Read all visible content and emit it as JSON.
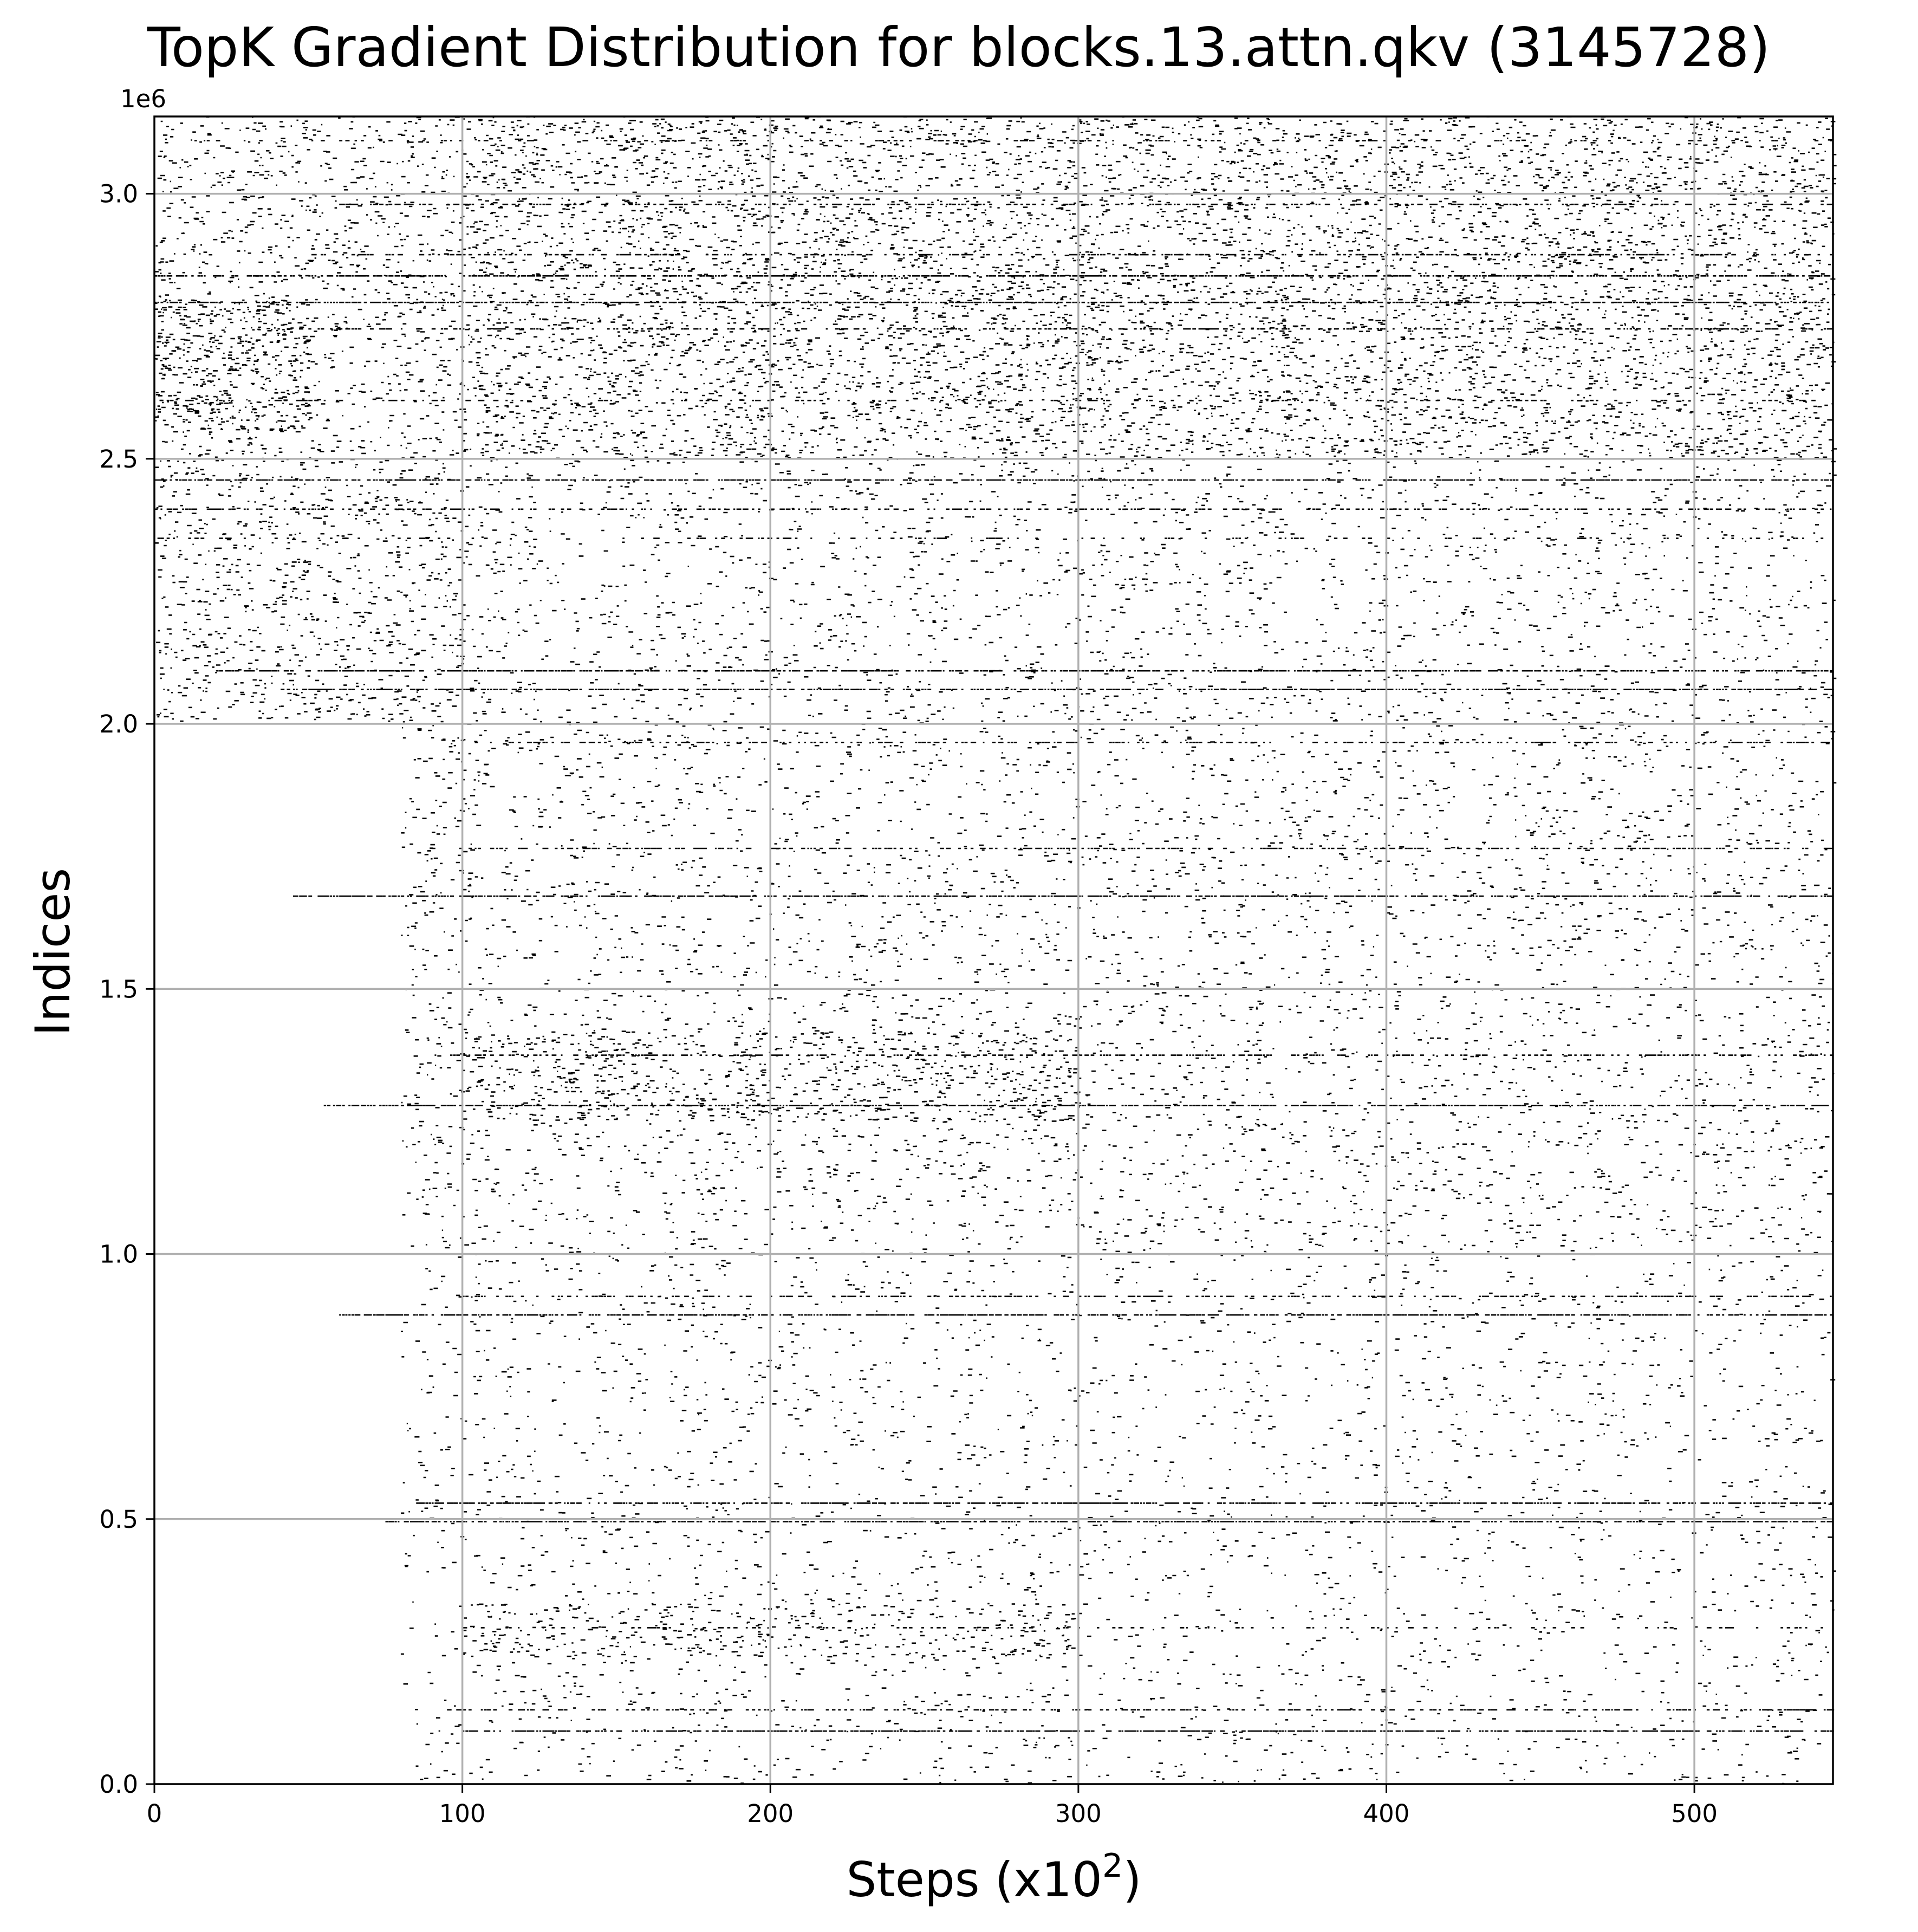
{
  "chart_data": {
    "type": "scatter",
    "title": "TopK Gradient Distribution for blocks.13.attn.qkv (3145728)",
    "xlabel": "Steps (x10",
    "xlabel_superscript": "2",
    "xlabel_suffix": ")",
    "ylabel": "Indices",
    "y_offset_label": "1e6",
    "xlim": [
      0,
      545
    ],
    "ylim": [
      0,
      3145728
    ],
    "y_scale_factor": 1000000,
    "grid": true,
    "marker_color": "#000000",
    "grid_color": "#b0b0b0",
    "x_ticks": [
      {
        "value": 0,
        "label": "0"
      },
      {
        "value": 100,
        "label": "100"
      },
      {
        "value": 200,
        "label": "200"
      },
      {
        "value": 300,
        "label": "300"
      },
      {
        "value": 400,
        "label": "400"
      },
      {
        "value": 500,
        "label": "500"
      }
    ],
    "y_ticks": [
      {
        "value": 0,
        "label": "0.0"
      },
      {
        "value": 500000,
        "label": "0.5"
      },
      {
        "value": 1000000,
        "label": "1.0"
      },
      {
        "value": 1500000,
        "label": "1.5"
      },
      {
        "value": 2000000,
        "label": "2.0"
      },
      {
        "value": 2500000,
        "label": "2.5"
      },
      {
        "value": 3000000,
        "label": "3.0"
      }
    ],
    "persistent_index_bands": [
      {
        "index": 3100000,
        "x_range": [
          0,
          545
        ],
        "density": "low"
      },
      {
        "index": 2980000,
        "x_range": [
          60,
          545
        ],
        "density": "medium"
      },
      {
        "index": 2885000,
        "x_range": [
          50,
          545
        ],
        "density": "medium"
      },
      {
        "index": 2845000,
        "x_range": [
          0,
          545
        ],
        "density": "high"
      },
      {
        "index": 2795000,
        "x_range": [
          0,
          545
        ],
        "density": "high"
      },
      {
        "index": 2745000,
        "x_range": [
          40,
          545
        ],
        "density": "medium"
      },
      {
        "index": 2610000,
        "x_range": [
          0,
          545
        ],
        "density": "low"
      },
      {
        "index": 2500000,
        "x_range": [
          0,
          545
        ],
        "density": "high"
      },
      {
        "index": 2460000,
        "x_range": [
          0,
          545
        ],
        "density": "high"
      },
      {
        "index": 2405000,
        "x_range": [
          0,
          545
        ],
        "density": "medium"
      },
      {
        "index": 2350000,
        "x_range": [
          0,
          545
        ],
        "density": "low"
      },
      {
        "index": 2100000,
        "x_range": [
          20,
          545
        ],
        "density": "high"
      },
      {
        "index": 2065000,
        "x_range": [
          40,
          545
        ],
        "density": "high"
      },
      {
        "index": 1965000,
        "x_range": [
          100,
          545
        ],
        "density": "medium"
      },
      {
        "index": 1765000,
        "x_range": [
          90,
          545
        ],
        "density": "medium"
      },
      {
        "index": 1675000,
        "x_range": [
          45,
          545
        ],
        "density": "high"
      },
      {
        "index": 1375000,
        "x_range": [
          90,
          545
        ],
        "density": "medium"
      },
      {
        "index": 1280000,
        "x_range": [
          55,
          545
        ],
        "density": "high"
      },
      {
        "index": 920000,
        "x_range": [
          100,
          545
        ],
        "density": "medium"
      },
      {
        "index": 885000,
        "x_range": [
          60,
          545
        ],
        "density": "high"
      },
      {
        "index": 530000,
        "x_range": [
          85,
          545
        ],
        "density": "high"
      },
      {
        "index": 495000,
        "x_range": [
          75,
          545
        ],
        "density": "high"
      },
      {
        "index": 295000,
        "x_range": [
          100,
          545
        ],
        "density": "low"
      },
      {
        "index": 140000,
        "x_range": [
          95,
          545
        ],
        "density": "medium"
      },
      {
        "index": 100000,
        "x_range": [
          100,
          545
        ],
        "density": "high"
      }
    ],
    "scatter_regions": [
      {
        "x_range": [
          0,
          100
        ],
        "y_range": [
          2000000,
          3145728
        ],
        "density": 0.55
      },
      {
        "x_range": [
          0,
          50
        ],
        "y_range": [
          2550000,
          2800000
        ],
        "density": 1.0
      },
      {
        "x_range": [
          100,
          545
        ],
        "y_range": [
          2500000,
          3145728
        ],
        "density": 0.85
      },
      {
        "x_range": [
          100,
          545
        ],
        "y_range": [
          2000000,
          2500000
        ],
        "density": 0.3
      },
      {
        "x_range": [
          80,
          545
        ],
        "y_range": [
          1000000,
          2000000
        ],
        "density": 0.3
      },
      {
        "x_range": [
          100,
          300
        ],
        "y_range": [
          1250000,
          1420000
        ],
        "density": 0.6
      },
      {
        "x_range": [
          80,
          545
        ],
        "y_range": [
          500000,
          1000000
        ],
        "density": 0.2
      },
      {
        "x_range": [
          80,
          545
        ],
        "y_range": [
          0,
          500000
        ],
        "density": 0.2
      },
      {
        "x_range": [
          100,
          300
        ],
        "y_range": [
          240000,
          340000
        ],
        "density": 0.5
      }
    ]
  }
}
